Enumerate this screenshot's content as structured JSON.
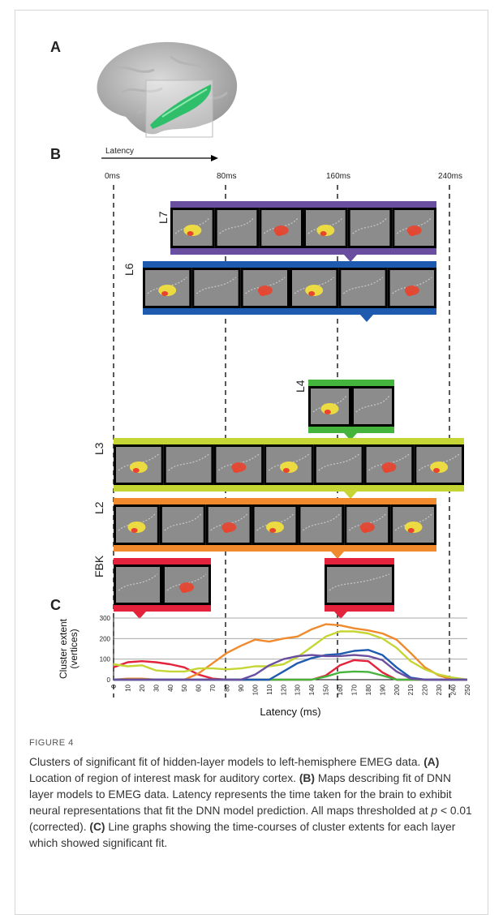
{
  "panel_a": {
    "letter": "A"
  },
  "panel_b": {
    "letter": "B",
    "latency_arrow_label": "Latency",
    "time_marks": [
      "0ms",
      "80ms",
      "160ms",
      "240ms"
    ],
    "layers": [
      {
        "name": "L7",
        "color": "#6a4ea0",
        "frames": 5
      },
      {
        "name": "L6",
        "color": "#1e5bb0",
        "frames": 6
      },
      {
        "name": "L4",
        "color": "#45b43c",
        "frames": 2
      },
      {
        "name": "L3",
        "color": "#c5d634",
        "frames": 7
      },
      {
        "name": "L2",
        "color": "#f08a2c",
        "frames": 6
      },
      {
        "name": "FBK",
        "color": "#e4223c",
        "frames": 3
      }
    ]
  },
  "panel_c": {
    "letter": "C"
  },
  "chart_data": {
    "type": "line",
    "ylabel": "Cluster extent\n(vertices)",
    "xlabel": "Latency (ms)",
    "x": [
      0,
      10,
      20,
      30,
      40,
      50,
      60,
      70,
      80,
      90,
      100,
      110,
      120,
      130,
      140,
      150,
      160,
      170,
      180,
      190,
      200,
      210,
      220,
      230,
      240,
      250
    ],
    "xlim": [
      0,
      250
    ],
    "ylim": [
      0,
      300
    ],
    "yticks": [
      0,
      100,
      200,
      300
    ],
    "grid": "horizontal",
    "series": [
      {
        "color": "#e4223c",
        "values": [
          60,
          85,
          90,
          85,
          75,
          60,
          25,
          5,
          0,
          0,
          0,
          0,
          0,
          0,
          0,
          20,
          70,
          95,
          90,
          35,
          0,
          0,
          0,
          0,
          0,
          0
        ]
      },
      {
        "color": "#f08a2c",
        "values": [
          0,
          5,
          5,
          0,
          0,
          0,
          30,
          80,
          130,
          165,
          195,
          185,
          200,
          210,
          245,
          270,
          265,
          250,
          240,
          225,
          195,
          130,
          60,
          20,
          0,
          0
        ]
      },
      {
        "color": "#c5d634",
        "values": [
          75,
          65,
          70,
          45,
          40,
          40,
          55,
          55,
          50,
          55,
          65,
          65,
          75,
          110,
          160,
          210,
          235,
          235,
          225,
          200,
          155,
          90,
          50,
          25,
          10,
          0
        ]
      },
      {
        "color": "#45b43c",
        "values": [
          0,
          0,
          0,
          0,
          0,
          0,
          0,
          0,
          0,
          0,
          0,
          0,
          0,
          0,
          0,
          15,
          35,
          40,
          38,
          20,
          0,
          0,
          0,
          0,
          0,
          0
        ]
      },
      {
        "color": "#1e5bb0",
        "values": [
          0,
          0,
          0,
          0,
          0,
          0,
          0,
          0,
          0,
          0,
          0,
          0,
          40,
          80,
          105,
          120,
          125,
          140,
          145,
          120,
          60,
          10,
          0,
          0,
          0,
          0
        ]
      },
      {
        "color": "#6a4ea0",
        "values": [
          0,
          0,
          0,
          0,
          0,
          0,
          0,
          0,
          0,
          0,
          25,
          70,
          100,
          115,
          120,
          115,
          115,
          120,
          115,
          95,
          40,
          5,
          0,
          0,
          0,
          0
        ]
      }
    ]
  },
  "caption": {
    "head": "FIGURE 4",
    "text_parts": [
      "Clusters of significant fit of hidden-layer models to left-hemisphere EMEG data. ",
      "(A)",
      " Location of region of interest mask for auditory cortex. ",
      "(B)",
      " Maps describing fit of DNN layer models to EMEG data. Latency represents the time taken for the brain to exhibit neural representations that fit the DNN model prediction. All maps thresholded at ",
      "p",
      " < 0.01 (corrected). ",
      "(C)",
      " Line graphs showing the time-courses of cluster extents for each layer which showed significant fit."
    ]
  }
}
